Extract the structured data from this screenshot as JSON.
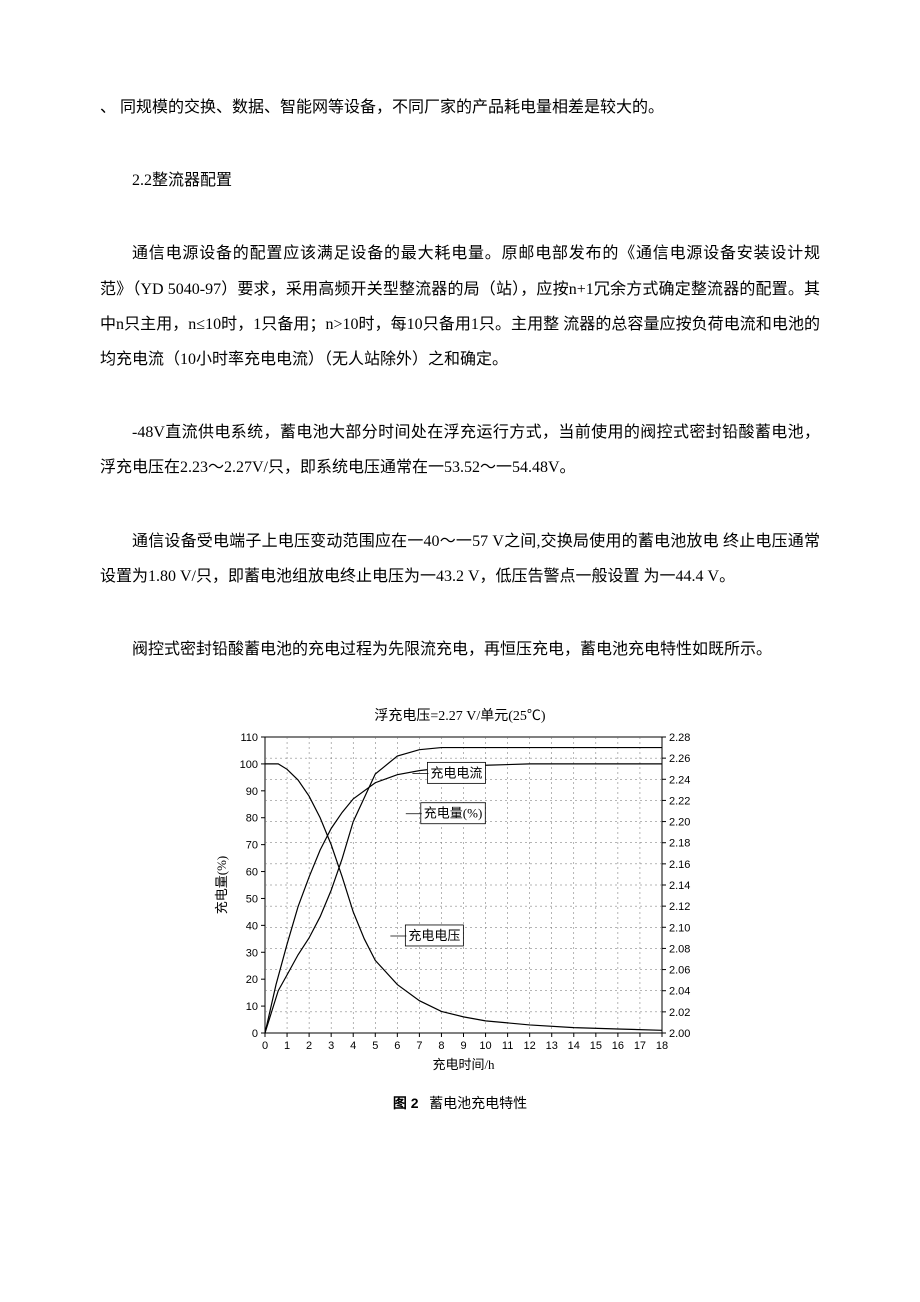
{
  "paragraphs": {
    "p1": "、 同规模的交换、数据、智能网等设备，不同厂家的产品耗电量相差是较大的。",
    "p2": "2.2整流器配置",
    "p3": "通信电源设备的配置应该满足设备的最大耗电量。原邮电部发布的《通信电源设备安装设计规范》（YD 5040-97）要求，采用高频开关型整流器的局（站），应按n+1冗余方式确定整流器的配置。其中n只主用，n≤10时，1只备用；n>10时，每10只备用1只。主用整 流器的总容量应按负荷电流和电池的均充电流（10小时率充电电流）（无人站除外）之和确定。",
    "p4": "-48V直流供电系统，蓄电池大部分时间处在浮充运行方式，当前使用的阀控式密封铅酸蓄电池，浮充电压在2.23〜2.27V/只，即系统电压通常在一53.52〜一54.48V。",
    "p5": "通信设备受电端子上电压变动范围应在一40〜一57 V之间,交换局使用的蓄电池放电  终止电压通常设置为1.80 V/只，即蓄电池组放电终止电压为一43.2 V，低压告警点一般设置 为一44.4 V。",
    "p6": "阀控式密封铅酸蓄电池的充电过程为先限流充电，再恒压充电，蓄电池充电特性如既所示。"
  },
  "chart": {
    "type": "line",
    "title": "浮充电压=2.27 V/单元(25℃)",
    "caption_prefix": "图 2",
    "caption_text": "蓄电池充电特性",
    "x_label": "充电时间/h",
    "y_left_label": "充电量(%)",
    "x_ticks": [
      0,
      1,
      2,
      3,
      4,
      5,
      6,
      7,
      8,
      9,
      10,
      11,
      12,
      13,
      14,
      15,
      16,
      17,
      18
    ],
    "y_left_ticks": [
      0,
      10,
      20,
      30,
      40,
      50,
      60,
      70,
      80,
      90,
      100,
      110
    ],
    "y_right_ticks": [
      2.0,
      2.02,
      2.04,
      2.06,
      2.08,
      2.1,
      2.12,
      2.14,
      2.16,
      2.18,
      2.2,
      2.22,
      2.24,
      2.26,
      2.28
    ],
    "xlim": [
      0,
      18
    ],
    "ylim_left": [
      0,
      110
    ],
    "ylim_right": [
      2.0,
      2.28
    ],
    "series": {
      "charge_current": {
        "label": "充电电流",
        "label_pos_x": 7.5,
        "label_pos_left_y": 95,
        "points_x": [
          0,
          0.3,
          0.6,
          1,
          1.5,
          2,
          2.5,
          3,
          3.5,
          4,
          4.5,
          5,
          6,
          7,
          8,
          9,
          10,
          12,
          14,
          16,
          18
        ],
        "points_left_y": [
          100,
          100,
          100,
          98,
          94,
          88,
          80,
          70,
          58,
          45,
          35,
          27,
          18,
          12,
          8,
          6,
          4.5,
          3,
          2,
          1.5,
          1
        ]
      },
      "charge_amount": {
        "label": "充电量(%)",
        "label_pos_x": 7.2,
        "label_pos_left_y": 80,
        "points_x": [
          0,
          0.5,
          1,
          1.5,
          2,
          2.5,
          3,
          3.5,
          4,
          5,
          6,
          7,
          8,
          10,
          12,
          14,
          16,
          18
        ],
        "points_left_y": [
          0,
          18,
          33,
          47,
          58,
          68,
          76,
          82,
          87,
          93,
          96,
          97.5,
          98.5,
          99.5,
          100,
          100,
          100,
          100
        ]
      },
      "charge_voltage": {
        "label": "充电电压",
        "label_pos_x": 6.5,
        "label_pos_right_y": 2.088,
        "points_x": [
          0,
          0.3,
          0.6,
          1,
          1.5,
          2,
          2.5,
          3,
          3.5,
          4,
          5,
          6,
          7,
          8,
          9,
          10,
          12,
          14,
          16,
          18
        ],
        "points_right_y": [
          2.0,
          2.02,
          2.04,
          2.055,
          2.074,
          2.09,
          2.11,
          2.135,
          2.165,
          2.2,
          2.245,
          2.262,
          2.268,
          2.27,
          2.27,
          2.27,
          2.27,
          2.27,
          2.27,
          2.27
        ]
      }
    },
    "colors": {
      "axis": "#000000",
      "grid": "#6b6b6b",
      "line": "#000000",
      "background": "#ffffff",
      "text": "#000000"
    },
    "style": {
      "line_width": 1.2,
      "grid_dash": "2,3",
      "title_fontsize": 14,
      "axis_fontsize": 11
    }
  }
}
